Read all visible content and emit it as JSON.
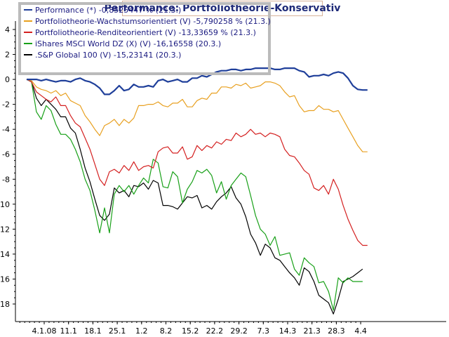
{
  "chart_data": {
    "type": "line",
    "title": "Performance: Portfoliotheorie-Konservativ",
    "xlabel": "",
    "ylabel": "",
    "ylim": [
      -19.5,
      4.5
    ],
    "y_ticks": [
      4,
      2,
      0,
      -2,
      -4,
      -6,
      -8,
      -10,
      -12,
      -14,
      -16,
      -18
    ],
    "x_tick_labels": [
      "4.1.08",
      "11.1",
      "18.1",
      "25.1",
      "1.2",
      "8.2",
      "15.2",
      "22.2",
      "29.2",
      "7.3",
      "14.3",
      "21.3",
      "28.3",
      "4.4"
    ],
    "grid": false,
    "legend_position": "top-left",
    "background": "#ffffff",
    "series": [
      {
        "name": "Performance (*) -0,8525447 % (21.3.)",
        "color": "#1f3f9a",
        "x_index": [
          0,
          1,
          2,
          3,
          4,
          5,
          6,
          7,
          8,
          9,
          10,
          11,
          12,
          13,
          14,
          15,
          16,
          17,
          18,
          19,
          20,
          21,
          22,
          23,
          24,
          25,
          26,
          27,
          28,
          29,
          30,
          31,
          32,
          33,
          34,
          35,
          36,
          37,
          38,
          39,
          40,
          41,
          42,
          43,
          44,
          45,
          46,
          47,
          48,
          49,
          50,
          51,
          52,
          53,
          54,
          55,
          56,
          57,
          58,
          59,
          60,
          61,
          62,
          63,
          64,
          65,
          66,
          67,
          68,
          69,
          70
        ],
        "values": [
          0,
          0,
          0,
          -0.1,
          0,
          -0.1,
          -0.2,
          -0.1,
          -0.1,
          -0.2,
          0,
          0.1,
          -0.1,
          -0.2,
          -0.4,
          -0.7,
          -1.2,
          -1.2,
          -0.9,
          -0.5,
          -0.9,
          -0.8,
          -0.4,
          -0.6,
          -0.6,
          -0.5,
          -0.6,
          -0.1,
          0,
          -0.2,
          -0.1,
          0,
          -0.2,
          -0.2,
          0.1,
          0.1,
          0.3,
          0.2,
          0.4,
          0.6,
          0.7,
          0.7,
          0.8,
          0.8,
          0.7,
          0.8,
          0.8,
          0.9,
          0.9,
          0.9,
          0.9,
          0.8,
          0.8,
          0.9,
          0.9,
          0.9,
          0.7,
          0.6,
          0.2,
          0.3,
          0.3,
          0.4,
          0.3,
          0.5,
          0.6,
          0.5,
          0.1,
          -0.5,
          -0.8,
          -0.85,
          -0.85
        ]
      },
      {
        "name": "Portfoliotheorie-Wachstumsorientiert (V) -5,790258 % (21.3.)",
        "color": "#e8a020",
        "x_index": [
          0,
          1,
          2,
          3,
          4,
          5,
          6,
          7,
          8,
          9,
          10,
          11,
          12,
          13,
          14,
          15,
          16,
          17,
          18,
          19,
          20,
          21,
          22,
          23,
          24,
          25,
          26,
          27,
          28,
          29,
          30,
          31,
          32,
          33,
          34,
          35,
          36,
          37,
          38,
          39,
          40,
          41,
          42,
          43,
          44,
          45,
          46,
          47,
          48,
          49,
          50,
          51,
          52,
          53,
          54,
          55,
          56,
          57,
          58,
          59,
          60,
          61,
          62,
          63,
          64,
          65,
          66,
          67,
          68,
          69,
          70
        ],
        "values": [
          0,
          -0.1,
          -0.6,
          -0.8,
          -0.9,
          -1.1,
          -0.9,
          -1.3,
          -1.1,
          -1.7,
          -1.9,
          -2.1,
          -2.9,
          -3.4,
          -4,
          -4.5,
          -3.7,
          -3.5,
          -3.2,
          -3.7,
          -3.2,
          -3.5,
          -3.1,
          -2.1,
          -2.1,
          -2,
          -2,
          -1.8,
          -2.1,
          -2.2,
          -1.9,
          -1.9,
          -1.6,
          -2.2,
          -2.2,
          -1.7,
          -1.5,
          -1.6,
          -1.1,
          -1.1,
          -0.6,
          -0.6,
          -0.7,
          -0.4,
          -0.5,
          -0.3,
          -0.7,
          -0.6,
          -0.5,
          -0.2,
          -0.2,
          -0.3,
          -0.5,
          -1,
          -1.4,
          -1.3,
          -2.1,
          -2.6,
          -2.5,
          -2.5,
          -2.1,
          -2.4,
          -2.4,
          -2.6,
          -2.5,
          -3.2,
          -3.9,
          -4.6,
          -5.3,
          -5.8,
          -5.8
        ]
      },
      {
        "name": "Portfoliotheorie-Renditeorientiert (V) -13,33659 % (21.3.)",
        "color": "#d42020",
        "x_index": [
          0,
          1,
          2,
          3,
          4,
          5,
          6,
          7,
          8,
          9,
          10,
          11,
          12,
          13,
          14,
          15,
          16,
          17,
          18,
          19,
          20,
          21,
          22,
          23,
          24,
          25,
          26,
          27,
          28,
          29,
          30,
          31,
          32,
          33,
          34,
          35,
          36,
          37,
          38,
          39,
          40,
          41,
          42,
          43,
          44,
          45,
          46,
          47,
          48,
          49,
          50,
          51,
          52,
          53,
          54,
          55,
          56,
          57,
          58,
          59,
          60,
          61,
          62,
          63,
          64,
          65,
          66,
          67,
          68,
          69,
          70
        ],
        "values": [
          0,
          -0.2,
          -1,
          -1.3,
          -1.6,
          -1.8,
          -1.4,
          -2.1,
          -2.1,
          -2.9,
          -3.5,
          -3.8,
          -4.7,
          -5.6,
          -6.8,
          -8,
          -8.5,
          -7.4,
          -7.2,
          -7.5,
          -6.9,
          -7.3,
          -6.6,
          -7.3,
          -7,
          -6.9,
          -7.1,
          -5.8,
          -5.5,
          -5.4,
          -5.9,
          -5.9,
          -5.4,
          -6.4,
          -6.2,
          -5.3,
          -5.7,
          -5.3,
          -5.5,
          -5,
          -5.2,
          -4.8,
          -4.9,
          -4.3,
          -4.6,
          -4.4,
          -4,
          -4.4,
          -4.3,
          -4.6,
          -4.3,
          -4.4,
          -4.6,
          -5.6,
          -6.1,
          -6.2,
          -6.7,
          -7.3,
          -7.6,
          -8.7,
          -8.9,
          -8.5,
          -9.2,
          -8,
          -8.8,
          -10.1,
          -11.2,
          -12.1,
          -12.9,
          -13.3,
          -13.3
        ]
      },
      {
        "name": "iShares MSCI World DZ (X) (V) -16,16558 (20.3.)",
        "color": "#18a018",
        "x_index": [
          0,
          1,
          2,
          3,
          4,
          5,
          6,
          7,
          8,
          9,
          10,
          11,
          12,
          13,
          14,
          15,
          16,
          17,
          18,
          19,
          20,
          21,
          22,
          23,
          24,
          25,
          26,
          27,
          28,
          29,
          30,
          31,
          32,
          33,
          34,
          35,
          36,
          37,
          38,
          39,
          40,
          41,
          42,
          43,
          44,
          45,
          46,
          47,
          48,
          49,
          50,
          51,
          52,
          53,
          54,
          55,
          56,
          57,
          58,
          59,
          60,
          61,
          62,
          63,
          64,
          65,
          66,
          67,
          68,
          69
        ],
        "values": [
          0,
          -0.2,
          -2.6,
          -3.2,
          -2.1,
          -2.5,
          -3.6,
          -4.4,
          -4.4,
          -4.8,
          -5.6,
          -6.6,
          -8,
          -8.9,
          -10.5,
          -12.3,
          -10.3,
          -12.3,
          -9.2,
          -8.5,
          -9,
          -8.5,
          -9.2,
          -8.5,
          -7.9,
          -8.3,
          -6.4,
          -6.7,
          -8.6,
          -8.7,
          -7.4,
          -7.8,
          -9.9,
          -8.8,
          -8.2,
          -7.3,
          -7.5,
          -7.2,
          -7.7,
          -9.1,
          -8.2,
          -9.6,
          -8.5,
          -8,
          -7.5,
          -7.8,
          -9.3,
          -10.9,
          -12,
          -12.4,
          -13.3,
          -12.6,
          -14.1,
          -14,
          -13.9,
          -15.2,
          -15.7,
          -14.3,
          -14.7,
          -15,
          -16.3,
          -16.2,
          -17,
          -18.5,
          -15.9,
          -16.3,
          -15.9,
          -16.2,
          -16.2,
          -16.2
        ]
      },
      {
        "name": ".S&P Global 100 (V) -15,23141 (20.3.)",
        "color": "#000000",
        "x_index": [
          0,
          1,
          2,
          3,
          4,
          5,
          6,
          7,
          8,
          9,
          10,
          11,
          12,
          13,
          14,
          15,
          16,
          17,
          18,
          19,
          20,
          21,
          22,
          23,
          24,
          25,
          26,
          27,
          28,
          29,
          30,
          31,
          32,
          33,
          34,
          35,
          36,
          37,
          38,
          39,
          40,
          41,
          42,
          43,
          44,
          45,
          46,
          47,
          48,
          49,
          50,
          51,
          52,
          53,
          54,
          55,
          56,
          57,
          58,
          59,
          60,
          61,
          62,
          63,
          64,
          65,
          66,
          67,
          68,
          69
        ],
        "values": [
          0,
          -0.2,
          -1.5,
          -2.1,
          -1.6,
          -2,
          -2.4,
          -3,
          -3,
          -3.9,
          -4.3,
          -5.6,
          -7.1,
          -8.2,
          -9.6,
          -10.9,
          -11.3,
          -10.8,
          -8.7,
          -9.1,
          -8.9,
          -9.4,
          -8.5,
          -8.6,
          -8.3,
          -8.8,
          -8.1,
          -8.3,
          -10.1,
          -10.1,
          -10.2,
          -10.4,
          -9.9,
          -9.4,
          -9.5,
          -9.3,
          -10.3,
          -10.1,
          -10.4,
          -9.8,
          -9.4,
          -9.1,
          -8.6,
          -9.5,
          -10,
          -11,
          -12.4,
          -13.1,
          -14.1,
          -13.2,
          -13.5,
          -14.3,
          -14.5,
          -15,
          -15.5,
          -15.9,
          -16.5,
          -15.1,
          -15.4,
          -16.2,
          -17.3,
          -17.6,
          -17.9,
          -18.8,
          -17.6,
          -16.2,
          -16,
          -15.8,
          -15.5,
          -15.2
        ]
      }
    ]
  }
}
